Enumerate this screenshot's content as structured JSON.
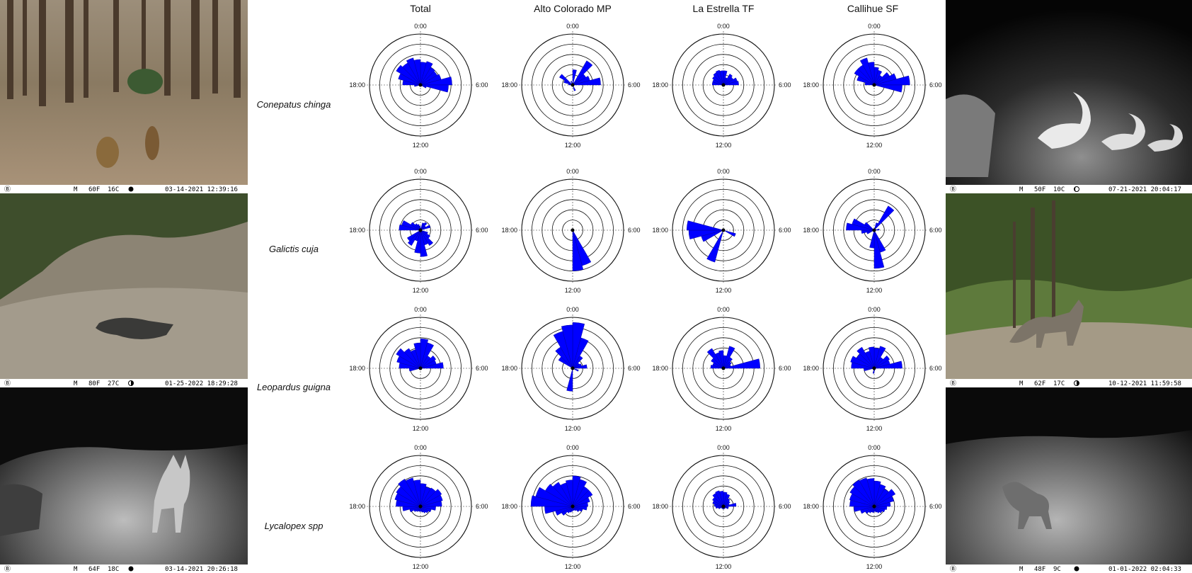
{
  "column_titles": [
    "Total",
    "Alto Colorado MP",
    "La Estrella TF",
    "Callihue SF"
  ],
  "row_labels": [
    "Conepatus chinga",
    "Galictis cuja",
    "Leopardus guigna",
    "Lycalopex spp"
  ],
  "hour_labels": {
    "top": "0:00",
    "right": "6:00",
    "bottom": "12:00",
    "left": "18:00"
  },
  "photos": {
    "left": [
      {
        "stamp": {
          "mode": "M",
          "tempF": "60F",
          "tempC": "16C",
          "moon": "full-moon",
          "datetime": "03-14-2021 12:39:16"
        }
      },
      {
        "stamp": {
          "mode": "M",
          "tempF": "80F",
          "tempC": "27C",
          "moon": "half-moon",
          "datetime": "01-25-2022 18:29:28"
        }
      },
      {
        "stamp": {
          "mode": "M",
          "tempF": "64F",
          "tempC": "18C",
          "moon": "full-moon",
          "datetime": "03-14-2021 20:26:18"
        }
      }
    ],
    "right": [
      {
        "stamp": {
          "mode": "M",
          "tempF": "50F",
          "tempC": "10C",
          "moon": "crescent-moon",
          "datetime": "07-21-2021 20:04:17"
        }
      },
      {
        "stamp": {
          "mode": "M",
          "tempF": "62F",
          "tempC": "17C",
          "moon": "half-moon",
          "datetime": "10-12-2021 11:59:58"
        }
      },
      {
        "stamp": {
          "mode": "M",
          "tempF": "48F",
          "tempC": "9C",
          "moon": "full-moon",
          "datetime": "01-01-2022 02:04:33"
        }
      }
    ]
  },
  "chart_data": [
    {
      "type": "rose",
      "species": "Conepatus chinga",
      "site": "Total",
      "color": "#0000ff",
      "bins_per_24h": 24,
      "values": [
        0.45,
        0.48,
        0.4,
        0.38,
        0.42,
        0.62,
        0.55,
        0.12,
        0.0,
        0.0,
        0.0,
        0.0,
        0.0,
        0.0,
        0.0,
        0.0,
        0.0,
        0.12,
        0.35,
        0.45,
        0.55,
        0.5,
        0.55,
        0.5
      ]
    },
    {
      "type": "rose",
      "species": "Conepatus chinga",
      "site": "Alto Colorado MP",
      "color": "#0000ff",
      "bins_per_24h": 24,
      "values": [
        0.3,
        0.05,
        0.55,
        0.3,
        0.35,
        0.55,
        0.0,
        0.0,
        0.0,
        0.0,
        0.12,
        0.0,
        0.0,
        0.0,
        0.0,
        0.0,
        0.0,
        0.0,
        0.08,
        0.18,
        0.3,
        0.0,
        0.08,
        0.0
      ]
    },
    {
      "type": "rose",
      "species": "Conepatus chinga",
      "site": "La Estrella TF",
      "color": "#0000ff",
      "bins_per_24h": 24,
      "values": [
        0.28,
        0.15,
        0.25,
        0.22,
        0.28,
        0.3,
        0.0,
        0.0,
        0.0,
        0.0,
        0.0,
        0.0,
        0.0,
        0.0,
        0.0,
        0.0,
        0.0,
        0.0,
        0.22,
        0.22,
        0.25,
        0.28,
        0.3,
        0.28
      ]
    },
    {
      "type": "rose",
      "species": "Conepatus chinga",
      "site": "Callihue SF",
      "color": "#0000ff",
      "bins_per_24h": 24,
      "values": [
        0.35,
        0.3,
        0.22,
        0.35,
        0.45,
        0.7,
        0.55,
        0.0,
        0.0,
        0.0,
        0.0,
        0.0,
        0.0,
        0.0,
        0.0,
        0.0,
        0.0,
        0.0,
        0.18,
        0.35,
        0.45,
        0.45,
        0.55,
        0.45
      ]
    },
    {
      "type": "rose",
      "species": "Galictis cuja",
      "site": "Total",
      "color": "#0000ff",
      "bins_per_24h": 24,
      "values": [
        0.0,
        0.15,
        0.18,
        0.12,
        0.2,
        0.0,
        0.0,
        0.15,
        0.22,
        0.35,
        0.3,
        0.52,
        0.45,
        0.22,
        0.35,
        0.3,
        0.0,
        0.0,
        0.42,
        0.38,
        0.22,
        0.15,
        0.12,
        0.08
      ]
    },
    {
      "type": "rose",
      "species": "Galictis cuja",
      "site": "Alto Colorado MP",
      "color": "#0000ff",
      "bins_per_24h": 24,
      "values": [
        0,
        0,
        0,
        0,
        0,
        0,
        0,
        0,
        0,
        0.0,
        0.72,
        0.8,
        0.0,
        0,
        0,
        0,
        0,
        0,
        0,
        0,
        0,
        0,
        0,
        0
      ]
    },
    {
      "type": "rose",
      "species": "Galictis cuja",
      "site": "La Estrella TF",
      "color": "#0000ff",
      "bins_per_24h": 24,
      "values": [
        0,
        0,
        0,
        0,
        0,
        0,
        0,
        0.25,
        0.0,
        0.0,
        0.0,
        0.0,
        0.0,
        0.65,
        0.0,
        0.0,
        0.45,
        0.68,
        0.72,
        0.0,
        0,
        0,
        0,
        0
      ]
    },
    {
      "type": "rose",
      "species": "Galictis cuja",
      "site": "Callihue SF",
      "color": "#0000ff",
      "bins_per_24h": 24,
      "values": [
        0.0,
        0.15,
        0.55,
        0.0,
        0.0,
        0.1,
        0.0,
        0.0,
        0.0,
        0.0,
        0.45,
        0.75,
        0.35,
        0.0,
        0.0,
        0.0,
        0.15,
        0.25,
        0.55,
        0.45,
        0.22,
        0.0,
        0.0,
        0.0
      ]
    },
    {
      "type": "rose",
      "species": "Leopardus guigna",
      "site": "Total",
      "color": "#0000ff",
      "bins_per_24h": 24,
      "values": [
        0.58,
        0.52,
        0.28,
        0.35,
        0.32,
        0.45,
        0.0,
        0.0,
        0.0,
        0.0,
        0.0,
        0.0,
        0.0,
        0.0,
        0.0,
        0.0,
        0.0,
        0.22,
        0.42,
        0.48,
        0.55,
        0.45,
        0.38,
        0.5
      ]
    },
    {
      "type": "rose",
      "species": "Leopardus guigna",
      "site": "Alto Colorado MP",
      "color": "#0000ff",
      "bins_per_24h": 24,
      "values": [
        0.9,
        0.62,
        0.28,
        0.15,
        0.18,
        0.28,
        0.0,
        0.12,
        0.0,
        0.0,
        0.0,
        0.0,
        0.45,
        0.0,
        0.0,
        0.0,
        0.0,
        0.0,
        0.0,
        0.0,
        0.32,
        0.48,
        0.75,
        0.85
      ]
    },
    {
      "type": "rose",
      "species": "Leopardus guigna",
      "site": "La Estrella TF",
      "color": "#0000ff",
      "bins_per_24h": 24,
      "values": [
        0.25,
        0.45,
        0.25,
        0.18,
        0.15,
        0.72,
        0.0,
        0.0,
        0.0,
        0.0,
        0.0,
        0.0,
        0.0,
        0.0,
        0.0,
        0.0,
        0.0,
        0.0,
        0.25,
        0.22,
        0.28,
        0.45,
        0.32,
        0.35
      ]
    },
    {
      "type": "rose",
      "species": "Leopardus guigna",
      "site": "Callihue SF",
      "color": "#0000ff",
      "bins_per_24h": 24,
      "values": [
        0.4,
        0.45,
        0.25,
        0.35,
        0.32,
        0.55,
        0.0,
        0.0,
        0.0,
        0.0,
        0.0,
        0.05,
        0.1,
        0.0,
        0.0,
        0.0,
        0.0,
        0.2,
        0.45,
        0.48,
        0.4,
        0.48,
        0.35,
        0.42
      ]
    },
    {
      "type": "rose",
      "species": "Lycalopex spp",
      "site": "Total",
      "color": "#0000ff",
      "bins_per_24h": 24,
      "values": [
        0.45,
        0.4,
        0.42,
        0.48,
        0.45,
        0.42,
        0.3,
        0.22,
        0.18,
        0.15,
        0.12,
        0.1,
        0.1,
        0.1,
        0.12,
        0.15,
        0.22,
        0.35,
        0.48,
        0.52,
        0.55,
        0.62,
        0.58,
        0.52
      ]
    },
    {
      "type": "rose",
      "species": "Lycalopex spp",
      "site": "Alto Colorado MP",
      "color": "#0000ff",
      "bins_per_24h": 24,
      "values": [
        0.6,
        0.55,
        0.45,
        0.45,
        0.35,
        0.3,
        0.28,
        0.2,
        0.15,
        0.1,
        0.08,
        0.08,
        0.1,
        0.12,
        0.15,
        0.25,
        0.35,
        0.55,
        0.82,
        0.75,
        0.62,
        0.55,
        0.48,
        0.52
      ]
    },
    {
      "type": "rose",
      "species": "Lycalopex spp",
      "site": "La Estrella TF",
      "color": "#0000ff",
      "bins_per_24h": 24,
      "values": [
        0.28,
        0.25,
        0.18,
        0.15,
        0.12,
        0.25,
        0.1,
        0.1,
        0.05,
        0.05,
        0.05,
        0.05,
        0.05,
        0.05,
        0.05,
        0.05,
        0.1,
        0.15,
        0.18,
        0.22,
        0.25,
        0.3,
        0.32,
        0.3
      ]
    },
    {
      "type": "rose",
      "species": "Lycalopex spp",
      "site": "Callihue SF",
      "color": "#0000ff",
      "bins_per_24h": 24,
      "values": [
        0.5,
        0.45,
        0.4,
        0.48,
        0.4,
        0.32,
        0.25,
        0.22,
        0.18,
        0.15,
        0.12,
        0.1,
        0.12,
        0.12,
        0.15,
        0.2,
        0.28,
        0.4,
        0.48,
        0.5,
        0.55,
        0.6,
        0.58,
        0.55
      ]
    }
  ]
}
